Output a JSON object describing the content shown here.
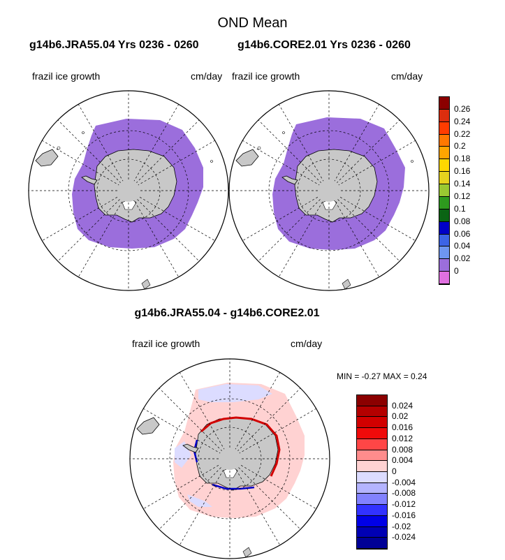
{
  "title": "OND Mean",
  "top_panels": {
    "left_case": "g14b6.JRA55.04  Yrs 0236 - 0260",
    "right_case": "g14b6.CORE2.01  Yrs 0236 - 0260",
    "left_field": "frazil ice growth",
    "left_units": "cm/day",
    "right_field": "frazil ice growth",
    "right_units": "cm/day"
  },
  "diff_panel": {
    "title": "g14b6.JRA55.04 - g14b6.CORE2.01",
    "field": "frazil ice growth",
    "units": "cm/day",
    "minmax": "MIN =  -0.27 MAX =   0.24"
  },
  "colorbar_top": {
    "labels": [
      "0.26",
      "0.24",
      "0.22",
      "0.2",
      "0.18",
      "0.16",
      "0.14",
      "0.12",
      "0.1",
      "0.08",
      "0.06",
      "0.04",
      "0.02",
      "0"
    ],
    "colors": [
      "#8b0000",
      "#dc2e0e",
      "#ff3c00",
      "#ff7800",
      "#ffa500",
      "#ffd700",
      "#e6d21e",
      "#9ac832",
      "#2e9a1e",
      "#0a6414",
      "#0000c8",
      "#3c64e6",
      "#6e96f0",
      "#9b6edc",
      "#e070e0"
    ]
  },
  "colorbar_diff": {
    "labels": [
      "0.024",
      "0.02",
      "0.016",
      "0.012",
      "0.008",
      "0.004",
      "0",
      "-0.004",
      "-0.008",
      "-0.012",
      "-0.016",
      "-0.02",
      "-0.024"
    ],
    "colors": [
      "#8b0000",
      "#b40000",
      "#d20000",
      "#f00a0a",
      "#ff4646",
      "#ff8c8c",
      "#ffd2d2",
      "#dcdcff",
      "#b4b4ff",
      "#8282ff",
      "#3232ff",
      "#0000e6",
      "#0000b4",
      "#000096"
    ]
  },
  "colors": {
    "ice_purple": "#9b6edc",
    "land_gray": "#c8c8c8",
    "diff_pink": "#ffd2d2",
    "diff_lavender": "#dcdcff"
  }
}
